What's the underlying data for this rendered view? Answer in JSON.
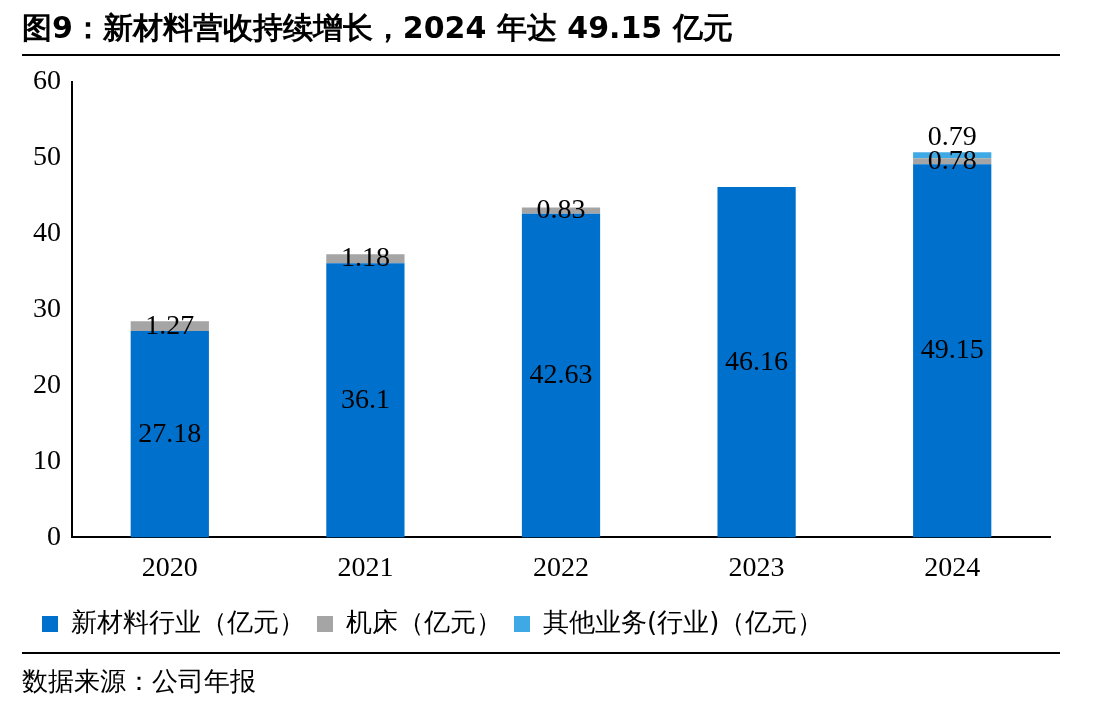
{
  "chart_data": {
    "type": "bar",
    "title": "图9：新材料营收持续增长，2024 年达 49.15 亿元",
    "categories": [
      "2020",
      "2021",
      "2022",
      "2023",
      "2024"
    ],
    "stacked": true,
    "series": [
      {
        "name": "新材料行业（亿元）",
        "color": "#0070cd",
        "values": [
          27.18,
          36.1,
          42.63,
          46.16,
          49.15
        ]
      },
      {
        "name": "机床（亿元）",
        "color": "#a5a5a5",
        "values": [
          1.27,
          1.18,
          0.83,
          null,
          0.78
        ]
      },
      {
        "name": "其他业务(行业)（亿元）",
        "color": "#3fa9e6",
        "values": [
          null,
          null,
          null,
          null,
          0.79
        ]
      }
    ],
    "ylim": [
      0,
      60
    ],
    "yticks": [
      0,
      10,
      20,
      30,
      40,
      50,
      60
    ],
    "data_labels": true,
    "legend": "bottom",
    "annotations": [
      "数据来源：公司年报"
    ]
  }
}
